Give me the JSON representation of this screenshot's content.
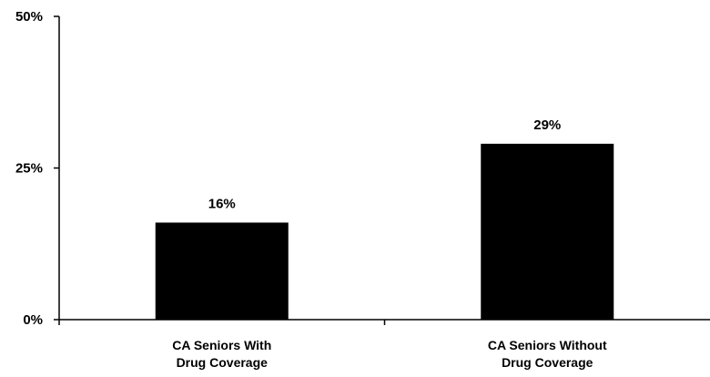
{
  "chart_data": {
    "type": "bar",
    "title": "",
    "xlabel": "",
    "ylabel": "",
    "categories": [
      [
        "CA Seniors With",
        "Drug Coverage"
      ],
      [
        "CA Seniors Without",
        "Drug Coverage"
      ]
    ],
    "values": [
      16,
      29
    ],
    "value_labels": [
      "16%",
      "29%"
    ],
    "ylim": [
      0,
      50
    ],
    "yticks": [
      0,
      25,
      50
    ],
    "ytick_labels": [
      "0%",
      "25%",
      "50%"
    ],
    "grid": false,
    "legend": "none",
    "colors": {
      "bar": "#000000",
      "axis": "#000000",
      "background": "#ffffff"
    }
  }
}
